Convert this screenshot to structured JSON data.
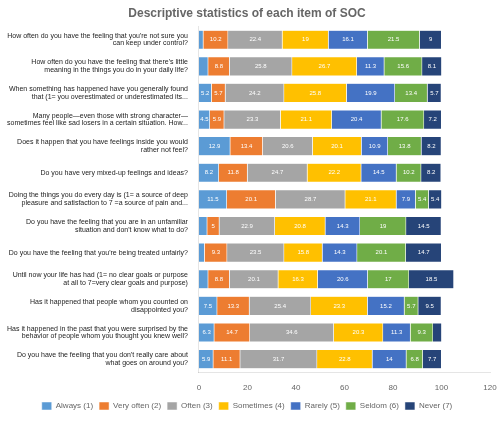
{
  "chart_data": {
    "type": "bar",
    "title": "Descriptive statistics of each item of SOC",
    "orientation": "horizontal",
    "stacked": true,
    "categories": [
      "How often do you have the feeling that you're not sure you\ncan keep under control?",
      "How often do you have the feeling that there's little\nmeaning in the things you do in your daily life?",
      "When something has happened have you generally found\nthat (1= you overestimated or underestimated its...",
      "Many people—even those with strong character—\nsometimes feel like sad losers in a certain situation. How...",
      "Does it happen that you have feelings inside you would\nrather not feel?",
      "Do you have very mixed-up feelings and ideas?",
      "Doing the things you do every day is (1= a source of deep\npleasure and satisfaction to 7 =a source of pain and...",
      "Do you have the feeling that you are in an unfamiliar\nsituation and don't know what to do?",
      "Do you have the feeling that you're being treated unfairly?",
      "Until now your life has had (1= no clear goals or purpose\nat all to 7=very clear goals and purpose)",
      "Has it happened that people whom you counted on\ndisappointed you?",
      "Has it happened in the past that you were surprised by the\nbehavior of people whom you thought you knew well?",
      "Do you have the feeling that you don't really care about\nwhat goes on around you?"
    ],
    "series": [
      {
        "name": "Always (1)",
        "color": "#5b9bd5",
        "values": [
          1.8,
          3.8,
          5.2,
          4.5,
          12.9,
          8.2,
          11.5,
          3.4,
          2.3,
          3.8,
          7.5,
          6.3,
          5.9
        ],
        "value_labels": [
          null,
          null,
          "5.2",
          "4.5",
          "12.9",
          "8.2",
          "11.5",
          null,
          null,
          null,
          "7.5",
          "6.3",
          "5.9"
        ]
      },
      {
        "name": "Very often (2)",
        "color": "#ed7d31",
        "values": [
          10.2,
          8.8,
          5.7,
          5.9,
          13.4,
          11.8,
          20.1,
          5,
          9.3,
          8.8,
          13.3,
          14.7,
          11.1
        ]
      },
      {
        "name": "Often (3)",
        "color": "#a5a5a5",
        "values": [
          22.4,
          25.8,
          24.2,
          23.3,
          20.6,
          24.7,
          28.7,
          22.9,
          23.5,
          20.1,
          25.4,
          34.6,
          31.7
        ]
      },
      {
        "name": "Sometimes (4)",
        "color": "#ffc000",
        "values": [
          19,
          26.7,
          25.8,
          21.1,
          20.1,
          22.2,
          21.1,
          20.8,
          15.8,
          16.3,
          23.3,
          20.3,
          22.8
        ]
      },
      {
        "name": "Rarely (5)",
        "color": "#4472c4",
        "values": [
          16.1,
          11.3,
          19.9,
          20.4,
          10.9,
          14.5,
          7.9,
          14.3,
          14.3,
          20.6,
          15.2,
          11.3,
          14.0
        ]
      },
      {
        "name": "Seldom (6)",
        "color": "#70ad47",
        "values": [
          21.5,
          15.6,
          13.4,
          17.6,
          13.8,
          10.2,
          5.4,
          19,
          20.1,
          17,
          5.7,
          9.3,
          6.8
        ]
      },
      {
        "name": "Never (7)",
        "color": "#264478",
        "values": [
          9,
          8.1,
          5.7,
          7.2,
          8.2,
          8.2,
          5.4,
          14.5,
          14.7,
          18.5,
          9.5,
          3.6,
          7.7
        ],
        "value_labels": [
          "9",
          "8.1",
          "5.7",
          "7.2",
          "8.2",
          "8.2",
          "5.4",
          "14.5",
          "14.7",
          "18.5",
          "9.5",
          null,
          "7.7"
        ]
      }
    ],
    "xlim": [
      0,
      120
    ],
    "xticks": [
      0,
      20,
      40,
      60,
      80,
      100,
      120
    ],
    "grid": false,
    "legend": "bottom",
    "data_labels": true
  }
}
